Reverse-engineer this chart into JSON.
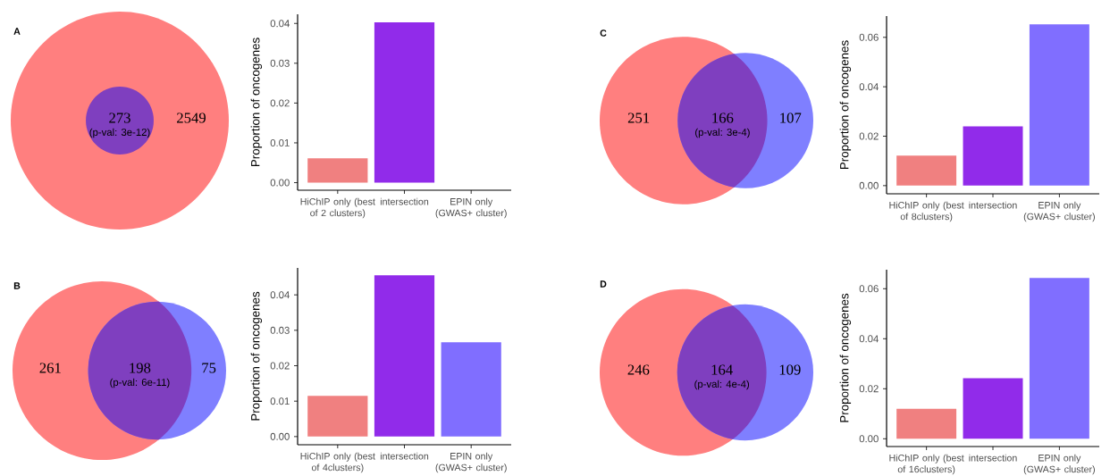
{
  "chart_data": [
    {
      "type": "other",
      "title": "A",
      "values": [
        null,
        273,
        2549
      ],
      "colors": [
        null,
        "#7f3fbf",
        "#ff7f7f"
      ],
      "data_labels": true,
      "annotations": [
        "(p-val: 3e-12)"
      ]
    },
    {
      "type": "bar",
      "categories": [
        "HiChIP only (best of 2 clusters)",
        "intersection",
        "EPIN only (GWAS+ cluster)"
      ],
      "values": [
        0.0061,
        0.0403,
        0
      ],
      "colors": [
        "#f08080",
        "#912bea",
        "#806eff"
      ],
      "ylabel": "Proportion of oncogenes",
      "ylim": [
        -0.0019,
        0.0423
      ],
      "yticks": [
        {
          "value": 0,
          "label": "0.00"
        },
        {
          "value": 0.01,
          "label": "0.01"
        },
        {
          "value": 0.02,
          "label": "0.02"
        },
        {
          "value": 0.03,
          "label": "0.03"
        },
        {
          "value": 0.04,
          "label": "0.04"
        }
      ]
    },
    {
      "type": "other",
      "title": "C",
      "values": [
        251,
        166,
        107
      ],
      "colors": [
        "#ff7f7f",
        "#7f3fbf",
        "#7f7fff"
      ],
      "data_labels": true,
      "annotations": [
        "(p-val: 3e-4)"
      ]
    },
    {
      "type": "bar",
      "categories": [
        "HiChIP only (best of 8clusters)",
        "intersection",
        "EPIN only (GWAS+ cluster)"
      ],
      "values": [
        0.0121,
        0.024,
        0.0653
      ],
      "colors": [
        "#f08080",
        "#912bea",
        "#806eff"
      ],
      "ylabel": "Proportion of oncogenes",
      "ylim": [
        -0.0033,
        0.0686
      ],
      "yticks": [
        {
          "value": 0,
          "label": "0.00"
        },
        {
          "value": 0.02,
          "label": "0.02"
        },
        {
          "value": 0.04,
          "label": "0.04"
        },
        {
          "value": 0.06,
          "label": "0.06"
        }
      ]
    },
    {
      "type": "other",
      "title": "B",
      "values": [
        261,
        198,
        75
      ],
      "colors": [
        "#ff7f7f",
        "#7f3fbf",
        "#7f7fff"
      ],
      "data_labels": true,
      "annotations": [
        "(p-val: 6e-11)"
      ]
    },
    {
      "type": "bar",
      "categories": [
        "HiChIP only (best of 4clusters)",
        "intersection",
        "EPIN only (GWAS+ cluster)"
      ],
      "values": [
        0.0115,
        0.0455,
        0.0266
      ],
      "colors": [
        "#f08080",
        "#912bea",
        "#806eff"
      ],
      "ylabel": "Proportion of oncogenes",
      "ylim": [
        -0.0023,
        0.0476
      ],
      "yticks": [
        {
          "value": 0,
          "label": "0.00"
        },
        {
          "value": 0.01,
          "label": "0.01"
        },
        {
          "value": 0.02,
          "label": "0.02"
        },
        {
          "value": 0.03,
          "label": "0.03"
        },
        {
          "value": 0.04,
          "label": "0.04"
        }
      ]
    },
    {
      "type": "other",
      "title": "D",
      "values": [
        246,
        164,
        109
      ],
      "colors": [
        "#ff7f7f",
        "#7f3fbf",
        "#7f7fff"
      ],
      "data_labels": true,
      "annotations": [
        "(p-val: 4e-4)"
      ]
    },
    {
      "type": "bar",
      "categories": [
        "HiChIP only (best of 16clusters)",
        "intersection",
        "EPIN only (GWAS+ cluster)"
      ],
      "values": [
        0.012,
        0.0242,
        0.0643
      ],
      "colors": [
        "#f08080",
        "#912bea",
        "#806eff"
      ],
      "ylabel": "Proportion of oncogenes",
      "ylim": [
        -0.0031,
        0.0676
      ],
      "yticks": [
        {
          "value": 0,
          "label": "0.00"
        },
        {
          "value": 0.02,
          "label": "0.02"
        },
        {
          "value": 0.04,
          "label": "0.04"
        },
        {
          "value": 0.06,
          "label": "0.06"
        }
      ]
    }
  ]
}
